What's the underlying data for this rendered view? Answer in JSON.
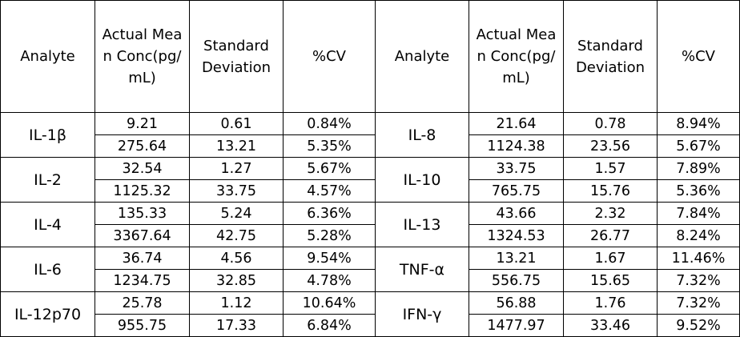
{
  "headers": {
    "analyte": "Analyte",
    "concentration": "Actual Mean Conc(pg/mL)",
    "std_dev": "Standard Deviation",
    "cv": "%CV"
  },
  "groups": [
    {
      "left": {
        "analyte": "IL-1β",
        "rows": [
          {
            "conc": "9.21",
            "sd": "0.61",
            "cv": "0.84%"
          },
          {
            "conc": "275.64",
            "sd": "13.21",
            "cv": "5.35%"
          }
        ]
      },
      "right": {
        "analyte": "IL-8",
        "rows": [
          {
            "conc": "21.64",
            "sd": "0.78",
            "cv": "8.94%"
          },
          {
            "conc": "1124.38",
            "sd": "23.56",
            "cv": "5.67%"
          }
        ]
      }
    },
    {
      "left": {
        "analyte": "IL-2",
        "rows": [
          {
            "conc": "32.54",
            "sd": "1.27",
            "cv": "5.67%"
          },
          {
            "conc": "1125.32",
            "sd": "33.75",
            "cv": "4.57%"
          }
        ]
      },
      "right": {
        "analyte": "IL-10",
        "rows": [
          {
            "conc": "33.75",
            "sd": "1.57",
            "cv": "7.89%"
          },
          {
            "conc": "765.75",
            "sd": "15.76",
            "cv": "5.36%"
          }
        ]
      }
    },
    {
      "left": {
        "analyte": "IL-4",
        "rows": [
          {
            "conc": "135.33",
            "sd": "5.24",
            "cv": "6.36%"
          },
          {
            "conc": "3367.64",
            "sd": "42.75",
            "cv": "5.28%"
          }
        ]
      },
      "right": {
        "analyte": "IL-13",
        "rows": [
          {
            "conc": "43.66",
            "sd": "2.32",
            "cv": "7.84%"
          },
          {
            "conc": "1324.53",
            "sd": "26.77",
            "cv": "8.24%"
          }
        ]
      }
    },
    {
      "left": {
        "analyte": "IL-6",
        "rows": [
          {
            "conc": "36.74",
            "sd": "4.56",
            "cv": "9.54%"
          },
          {
            "conc": "1234.75",
            "sd": "32.85",
            "cv": "4.78%"
          }
        ]
      },
      "right": {
        "analyte": "TNF-α",
        "rows": [
          {
            "conc": "13.21",
            "sd": "1.67",
            "cv": "11.46%"
          },
          {
            "conc": "556.75",
            "sd": "15.65",
            "cv": "7.32%"
          }
        ]
      }
    },
    {
      "left": {
        "analyte": "IL-12p70",
        "rows": [
          {
            "conc": "25.78",
            "sd": "1.12",
            "cv": "10.64%"
          },
          {
            "conc": "955.75",
            "sd": "17.33",
            "cv": "6.84%"
          }
        ]
      },
      "right": {
        "analyte": "IFN-γ",
        "rows": [
          {
            "conc": "56.88",
            "sd": "1.76",
            "cv": "7.32%"
          },
          {
            "conc": "1477.97",
            "sd": "33.46",
            "cv": "9.52%"
          }
        ]
      }
    }
  ]
}
